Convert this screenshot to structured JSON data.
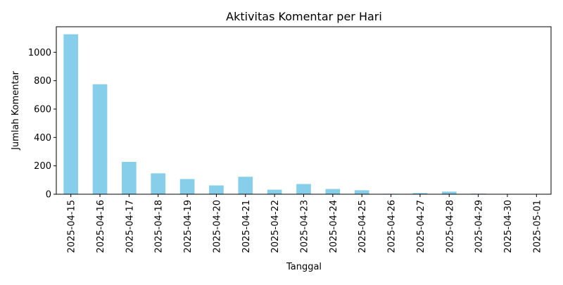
{
  "chart_data": {
    "type": "bar",
    "title": "Aktivitas Komentar per Hari",
    "xlabel": "Tanggal",
    "ylabel": "Jumlah Komentar",
    "categories": [
      "2025-04-15",
      "2025-04-16",
      "2025-04-17",
      "2025-04-18",
      "2025-04-19",
      "2025-04-20",
      "2025-04-21",
      "2025-04-22",
      "2025-04-23",
      "2025-04-24",
      "2025-04-25",
      "2025-04-26",
      "2025-04-27",
      "2025-04-28",
      "2025-04-29",
      "2025-04-30",
      "2025-05-01"
    ],
    "values": [
      1127,
      775,
      228,
      147,
      107,
      62,
      123,
      32,
      72,
      37,
      28,
      3,
      8,
      18,
      4,
      1,
      1
    ],
    "ylim": [
      0,
      1180
    ],
    "yticks": [
      0,
      200,
      400,
      600,
      800,
      1000
    ],
    "bar_color": "#87ceeb",
    "grid": false
  }
}
